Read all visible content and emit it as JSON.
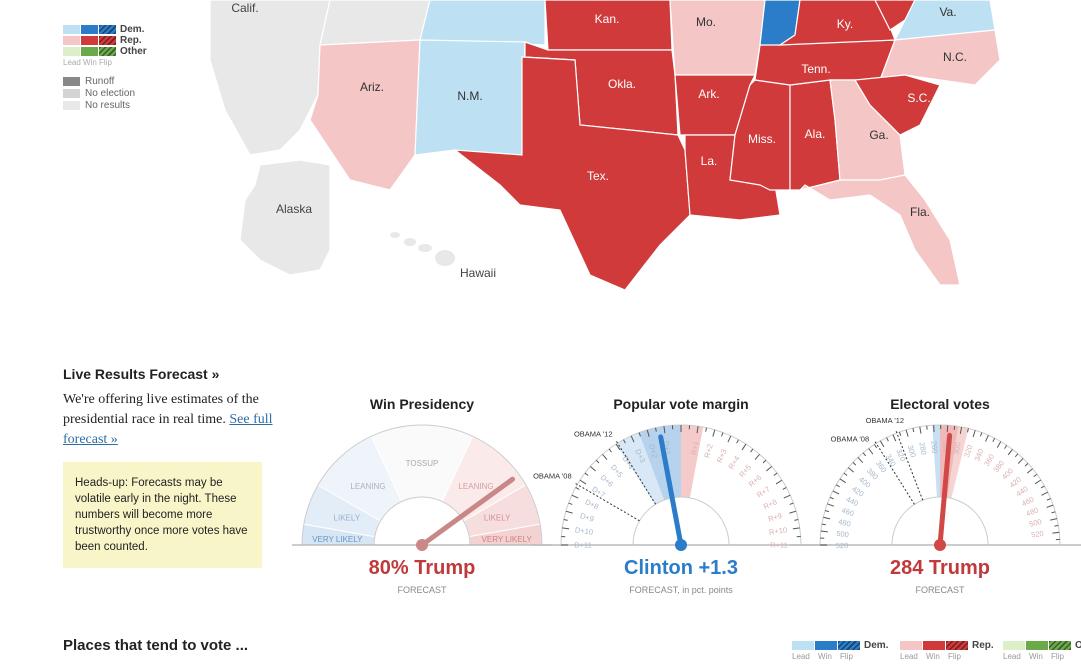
{
  "colors": {
    "dem_lead": "#bde0f2",
    "dem_win": "#2b7cc9",
    "rep_lead": "#f4c6c6",
    "rep_win": "#d03a3a",
    "other_lead": "#dcefc8",
    "other_win": "#6aaa4a",
    "runoff": "#888888",
    "no_election": "#d4d4d4",
    "no_results": "#e8e8e8"
  },
  "map": {
    "legend": {
      "dem": "Dem.",
      "rep": "Rep.",
      "other": "Other",
      "sub": "Lead Win Flip",
      "runoff": "Runoff",
      "no_election": "No election",
      "no_results": "No results"
    },
    "states": [
      "Calif.",
      "Ariz.",
      "N.M.",
      "Kan.",
      "Okla.",
      "Tex.",
      "Mo.",
      "Ark.",
      "La.",
      "Miss.",
      "Ala.",
      "Tenn.",
      "Ky.",
      "Va.",
      "N.C.",
      "S.C.",
      "Ga.",
      "Fla.",
      "Alaska",
      "Hawaii"
    ]
  },
  "forecast": {
    "heading": "Live Results Forecast »",
    "text": "We're offering live estimates of the presidential race in real time. ",
    "link": "See full forecast »",
    "note": "Heads-up: Forecasts may be volatile early in the night. These numbers will become more trustworthy once more votes have been counted."
  },
  "gauges": [
    {
      "title": "Win Presidency",
      "value_text": "80% Trump",
      "sub": "FORECAST",
      "trump_win_probability": 80,
      "segments": [
        "VERY LIKELY",
        "LIKELY",
        "LEANING",
        "TOSSUP",
        "LEANING",
        "LIKELY",
        "VERY LIKELY"
      ]
    },
    {
      "title": "Popular vote margin",
      "value_text": "Clinton +1.3",
      "sub": "FORECAST, in pct. points",
      "margin_dem": 1.3,
      "markers": [
        "OBAMA '12",
        "OBAMA '08"
      ],
      "left_ticks": [
        "D+1",
        "D+2",
        "D+3",
        "D+4",
        "D+5",
        "D+6",
        "D+7",
        "D+8",
        "D+9",
        "D+10",
        "D+11"
      ],
      "right_ticks": [
        "R+1",
        "R+2",
        "R+3",
        "R+4",
        "R+5",
        "R+6",
        "R+7",
        "R+8",
        "R+9",
        "R+10",
        "R+11"
      ]
    },
    {
      "title": "Electoral votes",
      "value_text": "284 Trump",
      "sub": "FORECAST",
      "trump_ev": 284,
      "markers": [
        "OBAMA '12",
        "OBAMA '08"
      ],
      "left_ticks": [
        "260",
        "280",
        "300",
        "320",
        "340",
        "360",
        "380",
        "400",
        "420",
        "440",
        "460",
        "480",
        "500",
        "520"
      ],
      "right_ticks": [
        "280",
        "300",
        "320",
        "340",
        "360",
        "380",
        "400",
        "420",
        "440",
        "460",
        "480",
        "500",
        "520"
      ]
    }
  ],
  "places": {
    "heading": "Places that tend to vote ..."
  },
  "bottom_legend": {
    "dem": "Dem.",
    "rep": "Rep.",
    "other": "O",
    "lead": "Lead",
    "win": "Win",
    "flip": "Flip"
  }
}
